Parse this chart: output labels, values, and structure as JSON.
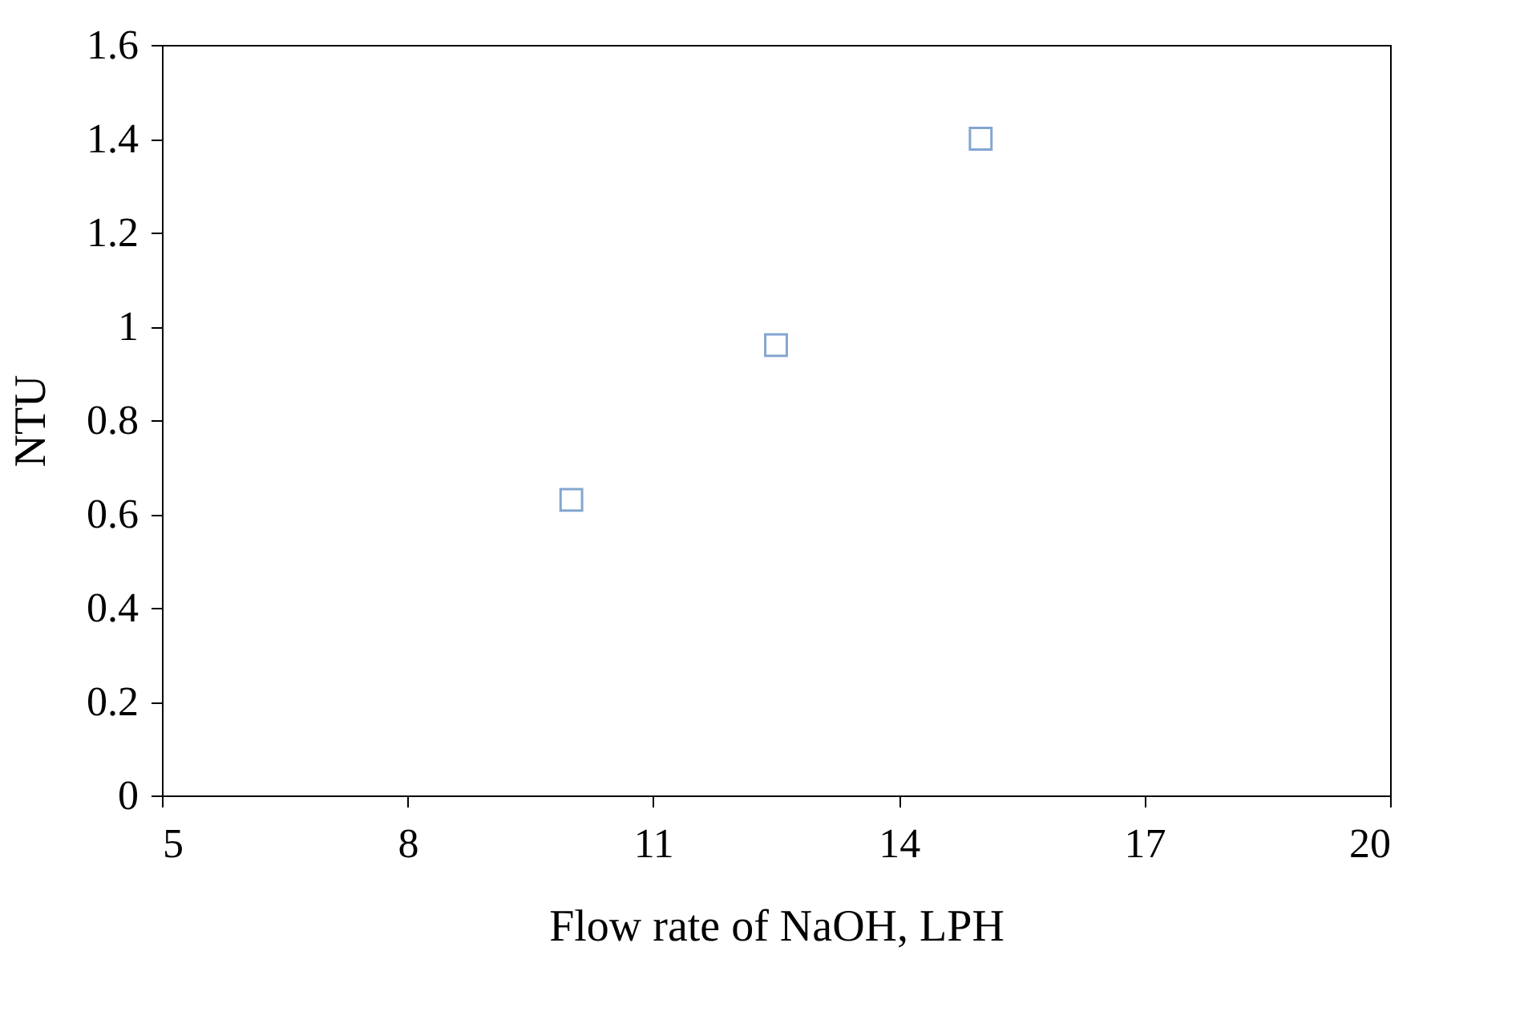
{
  "chart_data": {
    "type": "scatter",
    "xlabel": "Flow rate of NaOH, LPH",
    "ylabel": "NTU",
    "x": [
      10,
      12.5,
      15
    ],
    "series": [
      {
        "color": "#4f81bd",
        "values": [
          0.63,
          0.96,
          1.4
        ]
      }
    ],
    "xlim": [
      5,
      20
    ],
    "xticks": [
      5,
      8,
      11,
      14,
      17,
      20
    ],
    "ylim": [
      0,
      1.6
    ],
    "yticks": [
      0,
      0.2,
      0.4,
      0.6,
      0.8,
      1,
      1.2,
      1.4,
      1.6
    ],
    "grid": false,
    "legend": false,
    "marker": "square"
  }
}
